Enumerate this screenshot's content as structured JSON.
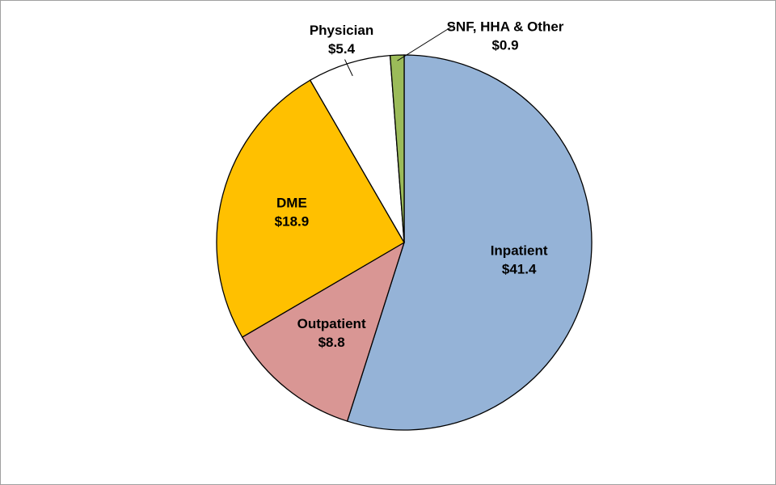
{
  "chart_data": {
    "type": "pie",
    "categories": [
      "Inpatient",
      "Outpatient",
      "DME",
      "Physician",
      "SNF, HHA & Other"
    ],
    "values": [
      41.4,
      8.8,
      18.9,
      5.4,
      0.9
    ],
    "value_labels": [
      "$41.4",
      "$8.8",
      "$18.9",
      "$5.4",
      "$0.9"
    ],
    "colors": [
      "#95b3d7",
      "#d99694",
      "#ffc000",
      "#ffffff",
      "#9bbb59"
    ]
  }
}
